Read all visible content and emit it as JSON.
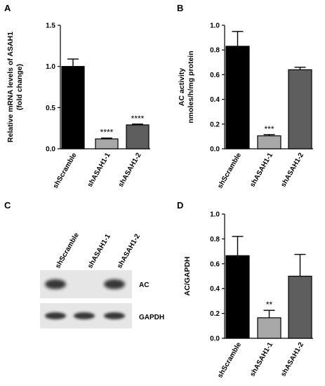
{
  "panels": {
    "A": {
      "letter": "A"
    },
    "B": {
      "letter": "B"
    },
    "C": {
      "letter": "C"
    },
    "D": {
      "letter": "D"
    }
  },
  "blot": {
    "lane_labels": [
      "shScramble",
      "shASAH1-1",
      "shASAH1-2"
    ],
    "rows": [
      {
        "label": "AC",
        "intensities": [
          0.85,
          0.0,
          0.85
        ]
      },
      {
        "label": "GAPDH",
        "intensities": [
          0.85,
          0.85,
          0.85
        ]
      }
    ]
  },
  "chart_data": [
    {
      "panel": "A",
      "type": "bar",
      "categories": [
        "shScramble",
        "shASAH1-1",
        "shASAH1-2"
      ],
      "values": [
        1.0,
        0.12,
        0.29
      ],
      "errors": [
        0.09,
        0.01,
        0.01
      ],
      "significance": [
        "",
        "****",
        "****"
      ],
      "bar_colors": [
        "#000000",
        "#a8a8a8",
        "#5e5e5e"
      ],
      "ylabel": "Relative mRNA levels of ASAH1 (fold change)",
      "ylabel_lines": [
        "Relative mRNA levels of ASAH1",
        "(fold change)"
      ],
      "ylim": [
        0,
        1.5
      ],
      "yticks": [
        "0.0",
        "0.5",
        "1.0",
        "1.5"
      ],
      "ytick_values": [
        0,
        0.5,
        1.0,
        1.5
      ]
    },
    {
      "panel": "B",
      "type": "bar",
      "categories": [
        "shScramble",
        "shASAH1-1",
        "shASAH1-2"
      ],
      "values": [
        0.83,
        0.105,
        0.64
      ],
      "errors": [
        0.12,
        0.01,
        0.02
      ],
      "significance": [
        "",
        "***",
        ""
      ],
      "bar_colors": [
        "#000000",
        "#a8a8a8",
        "#5e5e5e"
      ],
      "ylabel": "AC activity nmoles/h/mg protein",
      "ylabel_lines": [
        "AC activity",
        "nmoles/h/mg protein"
      ],
      "ylim": [
        0,
        1.0
      ],
      "yticks": [
        "0.0",
        "0.2",
        "0.4",
        "0.6",
        "0.8",
        "1.0"
      ],
      "ytick_values": [
        0,
        0.2,
        0.4,
        0.6,
        0.8,
        1.0
      ]
    },
    {
      "panel": "D",
      "type": "bar",
      "categories": [
        "shScramble",
        "shASAH1-1",
        "shASAH1-2"
      ],
      "values": [
        0.665,
        0.165,
        0.5
      ],
      "errors": [
        0.155,
        0.06,
        0.175
      ],
      "significance": [
        "",
        "**",
        ""
      ],
      "bar_colors": [
        "#000000",
        "#a8a8a8",
        "#5e5e5e"
      ],
      "ylabel": "AC/GAPDH",
      "ylabel_lines": [
        "AC/GAPDH"
      ],
      "ylim": [
        0,
        1.0
      ],
      "yticks": [
        "0.0",
        "0.2",
        "0.4",
        "0.6",
        "0.8",
        "1.0"
      ],
      "ytick_values": [
        0,
        0.2,
        0.4,
        0.6,
        0.8,
        1.0
      ]
    }
  ]
}
